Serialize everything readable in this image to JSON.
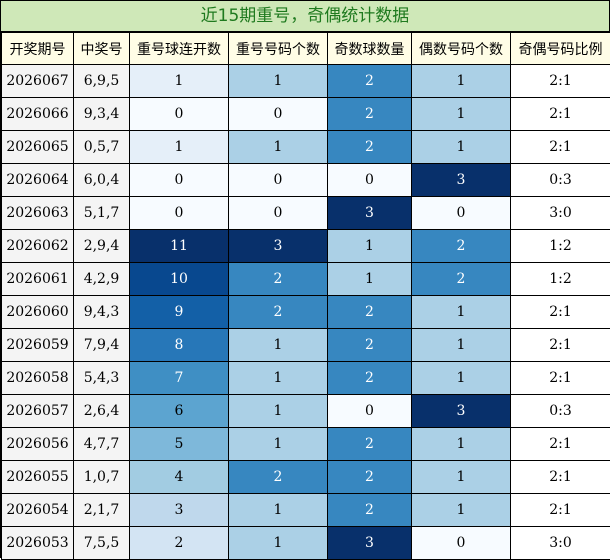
{
  "title": "近15期重号，奇偶统计数据",
  "chart_data": {
    "type": "table",
    "columns": [
      "开奖期号",
      "中奖号",
      "重号球连开数",
      "重号号码个数",
      "奇数球数量",
      "偶数号码个数",
      "奇偶号码比例"
    ],
    "rows": [
      [
        "2026067",
        "6,9,5",
        1,
        1,
        2,
        1,
        "2:1"
      ],
      [
        "2026066",
        "9,3,4",
        0,
        0,
        2,
        1,
        "2:1"
      ],
      [
        "2026065",
        "0,5,7",
        1,
        1,
        2,
        1,
        "2:1"
      ],
      [
        "2026064",
        "6,0,4",
        0,
        0,
        0,
        3,
        "0:3"
      ],
      [
        "2026063",
        "5,1,7",
        0,
        0,
        3,
        0,
        "3:0"
      ],
      [
        "2026062",
        "2,9,4",
        11,
        3,
        1,
        2,
        "1:2"
      ],
      [
        "2026061",
        "4,2,9",
        10,
        2,
        1,
        2,
        "1:2"
      ],
      [
        "2026060",
        "9,4,3",
        9,
        2,
        2,
        1,
        "2:1"
      ],
      [
        "2026059",
        "7,9,4",
        8,
        1,
        2,
        1,
        "2:1"
      ],
      [
        "2026058",
        "5,4,3",
        7,
        1,
        2,
        1,
        "2:1"
      ],
      [
        "2026057",
        "2,6,4",
        6,
        1,
        0,
        3,
        "0:3"
      ],
      [
        "2026056",
        "4,7,7",
        5,
        1,
        2,
        1,
        "2:1"
      ],
      [
        "2026055",
        "1,0,7",
        4,
        2,
        2,
        1,
        "2:1"
      ],
      [
        "2026054",
        "2,1,7",
        3,
        1,
        2,
        1,
        "2:1"
      ],
      [
        "2026053",
        "7,5,5",
        2,
        1,
        3,
        0,
        "3:0"
      ]
    ],
    "colors": {
      "header_bg": "#fffde6",
      "title_bg": "#cfe8b8",
      "title_text": "#1f7a1f",
      "plain_cell_bg": "#f4f4f4",
      "heat_low": "#f7fbff",
      "heat_high": "#08306b"
    }
  }
}
